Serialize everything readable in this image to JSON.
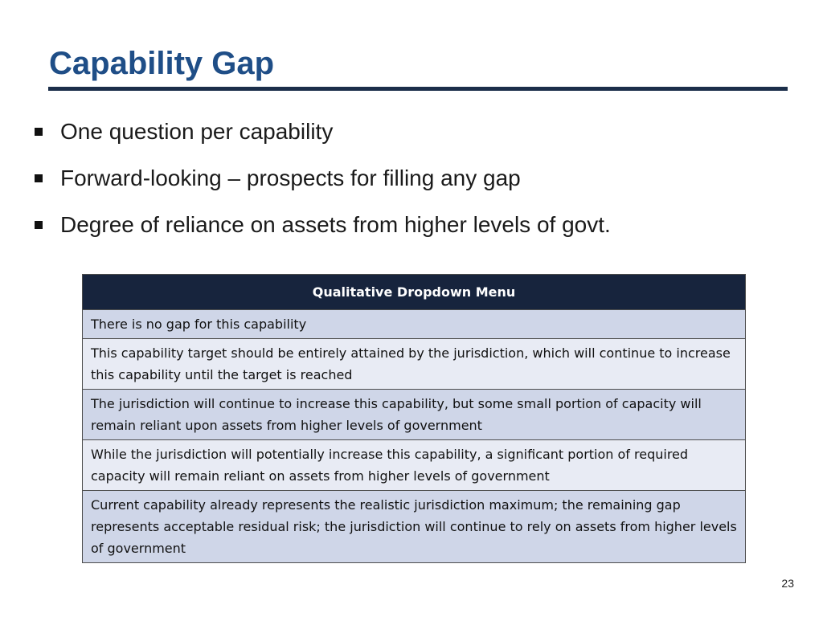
{
  "slide": {
    "title": "Capability Gap",
    "page_number": "23"
  },
  "bullets": [
    "One question per capability",
    "Forward-looking – prospects for filling any gap",
    "Degree of reliance on assets from higher levels of govt."
  ],
  "table": {
    "header": "Qualitative Dropdown Menu",
    "options": [
      "There is no gap for this capability",
      "This capability target should be entirely attained by the jurisdiction, which will continue to increase this capability until the target is reached",
      "The jurisdiction will continue to increase this capability, but some small portion of capacity will remain reliant upon assets from higher levels of government",
      "While the jurisdiction will potentially increase this capability, a significant portion of required capacity will remain reliant on assets from higher levels of government",
      "Current capability already represents the realistic jurisdiction maximum; the remaining gap represents acceptable residual risk; the jurisdiction will continue to rely on assets from higher levels of government"
    ]
  }
}
